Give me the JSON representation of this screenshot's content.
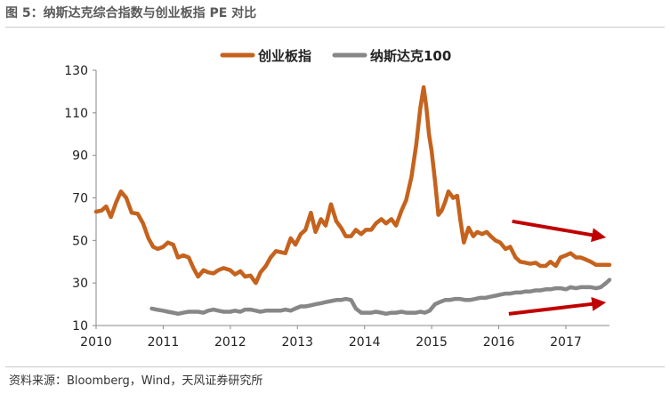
{
  "title": "图 5：纳斯达克综合指数与创业板指 PE 对比",
  "source": "资料来源：Bloomberg，Wind，天风证券研究所",
  "chart_data": {
    "type": "line",
    "title": "图 5：纳斯达克综合指数与创业板指 PE 对比",
    "xlabel": "",
    "ylabel": "",
    "xlim": [
      2010,
      2017.65
    ],
    "ylim": [
      10,
      130
    ],
    "xticks": [
      2010,
      2011,
      2012,
      2013,
      2014,
      2015,
      2016,
      2017
    ],
    "xtick_labels": [
      "2010",
      "2011",
      "2012",
      "2013",
      "2014",
      "2015",
      "2016",
      "2017"
    ],
    "yticks": [
      10,
      30,
      50,
      70,
      90,
      110,
      130
    ],
    "ytick_labels": [
      "10",
      "30",
      "50",
      "70",
      "90",
      "110",
      "130"
    ],
    "grid": false,
    "legend": "top-center",
    "series": [
      {
        "name": "创业板指",
        "color": "#c5621d",
        "x": [
          2010.0,
          2010.08,
          2010.15,
          2010.22,
          2010.3,
          2010.37,
          2010.45,
          2010.53,
          2010.62,
          2010.7,
          2010.78,
          2010.85,
          2010.92,
          2011.0,
          2011.07,
          2011.15,
          2011.22,
          2011.3,
          2011.38,
          2011.45,
          2011.52,
          2011.6,
          2011.67,
          2011.75,
          2011.82,
          2011.9,
          2012.0,
          2012.07,
          2012.15,
          2012.22,
          2012.3,
          2012.38,
          2012.45,
          2012.53,
          2012.6,
          2012.68,
          2012.75,
          2012.82,
          2012.9,
          2012.97,
          2013.05,
          2013.12,
          2013.2,
          2013.27,
          2013.35,
          2013.42,
          2013.5,
          2013.58,
          2013.65,
          2013.72,
          2013.8,
          2013.87,
          2013.95,
          2014.02,
          2014.1,
          2014.17,
          2014.25,
          2014.32,
          2014.4,
          2014.47,
          2014.55,
          2014.62,
          2014.7,
          2014.77,
          2014.83,
          2014.88,
          2014.92,
          2014.96,
          2015.0,
          2015.05,
          2015.1,
          2015.15,
          2015.2,
          2015.25,
          2015.32,
          2015.38,
          2015.43,
          2015.48,
          2015.55,
          2015.62,
          2015.68,
          2015.75,
          2015.82,
          2015.88,
          2015.95,
          2016.02,
          2016.1,
          2016.17,
          2016.25,
          2016.32,
          2016.4,
          2016.47,
          2016.55,
          2016.62,
          2016.7,
          2016.77,
          2016.85,
          2016.92,
          2017.0,
          2017.07,
          2017.15,
          2017.22,
          2017.3,
          2017.37,
          2017.45,
          2017.52,
          2017.6,
          2017.65
        ],
        "y": [
          63.5,
          64,
          66,
          61,
          68,
          73,
          70,
          63,
          62.5,
          58,
          51,
          47,
          46,
          47,
          49,
          48,
          42,
          43,
          42,
          37,
          33,
          36,
          35,
          34.5,
          36,
          37,
          36,
          34,
          35.5,
          33,
          33.5,
          30,
          35,
          38,
          42,
          45,
          44.5,
          44,
          51,
          48,
          53,
          55,
          63,
          54,
          60,
          57,
          67,
          59,
          56,
          52,
          52,
          55,
          53,
          55,
          55,
          58,
          60,
          58,
          60,
          57,
          64,
          69,
          80,
          95,
          112,
          122,
          113,
          100,
          92,
          78,
          62,
          64,
          68,
          73,
          70,
          71,
          59,
          49,
          56,
          52,
          54,
          53,
          54,
          52,
          50,
          49,
          46,
          47,
          42,
          40,
          39.5,
          39,
          39.5,
          38,
          38,
          40,
          38,
          42,
          43,
          44,
          42,
          42,
          41,
          40,
          38.5,
          38.5,
          38.5,
          38.5
        ]
      },
      {
        "name": "纳斯达克100",
        "color": "#878787",
        "x": [
          2010.83,
          2010.9,
          2011.0,
          2011.07,
          2011.15,
          2011.22,
          2011.3,
          2011.38,
          2011.45,
          2011.52,
          2011.6,
          2011.67,
          2011.75,
          2011.82,
          2011.9,
          2012.0,
          2012.07,
          2012.15,
          2012.22,
          2012.3,
          2012.38,
          2012.45,
          2012.53,
          2012.6,
          2012.68,
          2012.75,
          2012.82,
          2012.9,
          2012.97,
          2013.05,
          2013.12,
          2013.2,
          2013.27,
          2013.35,
          2013.42,
          2013.5,
          2013.58,
          2013.65,
          2013.72,
          2013.8,
          2013.87,
          2013.95,
          2014.02,
          2014.1,
          2014.17,
          2014.25,
          2014.32,
          2014.4,
          2014.47,
          2014.55,
          2014.62,
          2014.7,
          2014.77,
          2014.83,
          2014.9,
          2014.97,
          2015.05,
          2015.12,
          2015.2,
          2015.27,
          2015.35,
          2015.42,
          2015.5,
          2015.57,
          2015.65,
          2015.72,
          2015.8,
          2015.87,
          2015.95,
          2016.02,
          2016.1,
          2016.17,
          2016.25,
          2016.32,
          2016.4,
          2016.47,
          2016.55,
          2016.62,
          2016.7,
          2016.77,
          2016.85,
          2016.92,
          2017.0,
          2017.07,
          2017.15,
          2017.22,
          2017.3,
          2017.37,
          2017.45,
          2017.52,
          2017.6,
          2017.65
        ],
        "y": [
          18,
          17.5,
          17,
          16.5,
          16,
          15.5,
          16,
          16.5,
          16.5,
          16.5,
          16,
          17,
          17.5,
          17,
          16.5,
          16.5,
          17,
          16.5,
          17.5,
          17.5,
          17,
          16.5,
          17,
          17,
          17,
          17,
          17.5,
          17,
          18,
          19,
          19,
          19.5,
          20,
          20.5,
          21,
          21.5,
          22,
          22,
          22.5,
          22,
          18,
          16,
          16,
          16,
          16.5,
          16,
          15.5,
          16,
          16,
          16.5,
          16,
          16,
          16,
          16.5,
          16,
          17,
          20,
          21,
          22,
          22,
          22.5,
          22.5,
          22,
          22,
          22.5,
          23,
          23,
          23.5,
          24,
          24.5,
          25,
          25,
          25.5,
          25.5,
          26,
          26,
          26.5,
          26.5,
          27,
          27,
          27.5,
          27.5,
          27,
          28,
          27.5,
          28,
          28,
          28,
          27.5,
          28,
          30,
          31.5
        ]
      }
    ],
    "annotations": [
      {
        "type": "arrow",
        "direction": "down-right",
        "color": "#c00000",
        "from": [
          2016.2,
          59
        ],
        "to": [
          2017.6,
          51
        ]
      },
      {
        "type": "arrow",
        "direction": "up-right",
        "color": "#c00000",
        "from": [
          2016.15,
          15.5
        ],
        "to": [
          2017.6,
          21
        ]
      }
    ]
  }
}
